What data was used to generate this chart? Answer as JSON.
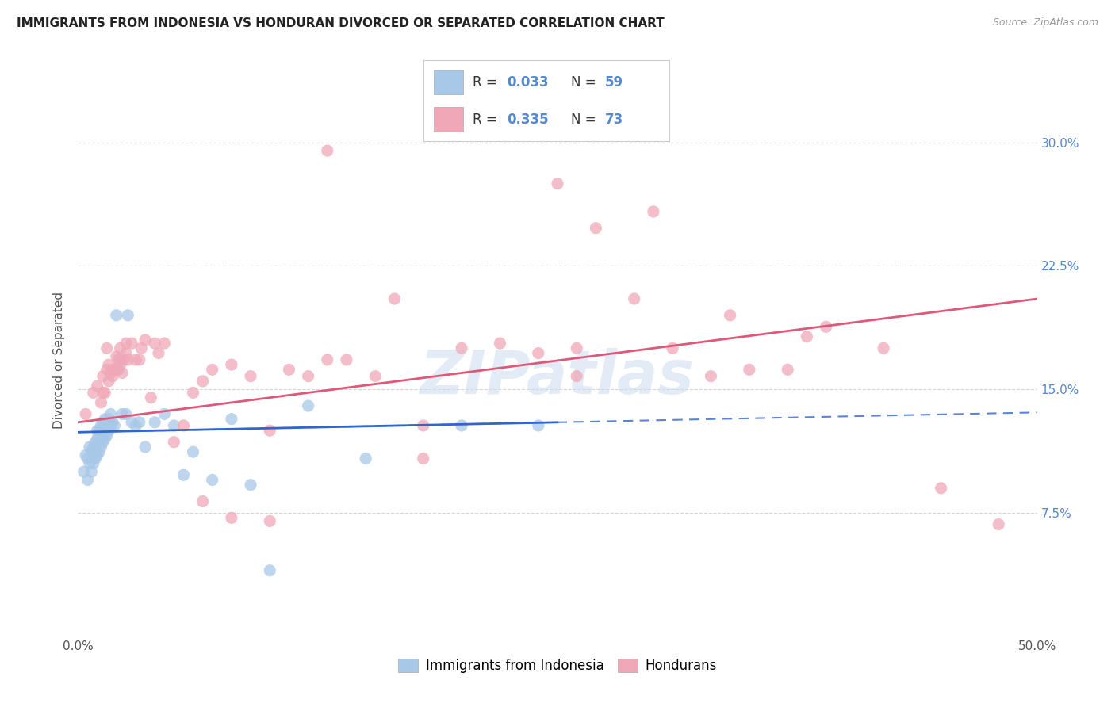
{
  "title": "IMMIGRANTS FROM INDONESIA VS HONDURAN DIVORCED OR SEPARATED CORRELATION CHART",
  "source": "Source: ZipAtlas.com",
  "ylabel": "Divorced or Separated",
  "xlim": [
    0.0,
    0.5
  ],
  "ylim": [
    0.0,
    0.335
  ],
  "xticks": [
    0.0,
    0.1,
    0.2,
    0.3,
    0.4,
    0.5
  ],
  "xticklabels": [
    "0.0%",
    "",
    "",
    "",
    "",
    "50.0%"
  ],
  "yticks": [
    0.075,
    0.15,
    0.225,
    0.3
  ],
  "yticklabels": [
    "7.5%",
    "15.0%",
    "22.5%",
    "30.0%"
  ],
  "watermark": "ZIPatlas",
  "legend_r1": "R = 0.033",
  "legend_n1": "N = 59",
  "legend_r2": "R = 0.335",
  "legend_n2": "N = 73",
  "indonesia_color": "#a8c8e8",
  "honduran_color": "#f0a8b8",
  "indonesia_line_color": "#3366cc",
  "honduran_line_color": "#e05878",
  "background_color": "#ffffff",
  "grid_color": "#cccccc",
  "tick_color": "#5588cc",
  "indonesia_points_x": [
    0.003,
    0.004,
    0.005,
    0.005,
    0.006,
    0.006,
    0.007,
    0.007,
    0.008,
    0.008,
    0.009,
    0.009,
    0.009,
    0.01,
    0.01,
    0.01,
    0.011,
    0.011,
    0.011,
    0.012,
    0.012,
    0.012,
    0.013,
    0.013,
    0.013,
    0.014,
    0.014,
    0.014,
    0.015,
    0.015,
    0.016,
    0.016,
    0.017,
    0.017,
    0.018,
    0.019,
    0.02,
    0.021,
    0.022,
    0.023,
    0.025,
    0.026,
    0.028,
    0.03,
    0.032,
    0.035,
    0.04,
    0.045,
    0.05,
    0.055,
    0.06,
    0.07,
    0.08,
    0.09,
    0.1,
    0.12,
    0.15,
    0.2,
    0.24
  ],
  "indonesia_points_y": [
    0.1,
    0.11,
    0.095,
    0.108,
    0.105,
    0.115,
    0.1,
    0.112,
    0.105,
    0.115,
    0.108,
    0.112,
    0.118,
    0.11,
    0.12,
    0.125,
    0.112,
    0.118,
    0.125,
    0.115,
    0.12,
    0.128,
    0.118,
    0.122,
    0.13,
    0.12,
    0.125,
    0.132,
    0.122,
    0.128,
    0.125,
    0.132,
    0.128,
    0.135,
    0.13,
    0.128,
    0.195,
    0.162,
    0.168,
    0.135,
    0.135,
    0.195,
    0.13,
    0.128,
    0.13,
    0.115,
    0.13,
    0.135,
    0.128,
    0.098,
    0.112,
    0.095,
    0.132,
    0.092,
    0.04,
    0.14,
    0.108,
    0.128,
    0.128
  ],
  "honduran_points_x": [
    0.004,
    0.008,
    0.01,
    0.012,
    0.013,
    0.013,
    0.014,
    0.015,
    0.015,
    0.016,
    0.016,
    0.017,
    0.018,
    0.018,
    0.019,
    0.02,
    0.02,
    0.021,
    0.022,
    0.022,
    0.023,
    0.024,
    0.025,
    0.025,
    0.026,
    0.028,
    0.03,
    0.032,
    0.033,
    0.035,
    0.038,
    0.04,
    0.042,
    0.045,
    0.05,
    0.055,
    0.06,
    0.065,
    0.07,
    0.08,
    0.09,
    0.1,
    0.11,
    0.12,
    0.13,
    0.14,
    0.155,
    0.165,
    0.18,
    0.2,
    0.22,
    0.24,
    0.26,
    0.29,
    0.31,
    0.33,
    0.35,
    0.37,
    0.39,
    0.42,
    0.45,
    0.48,
    0.25,
    0.27,
    0.3,
    0.34,
    0.38,
    0.18,
    0.13,
    0.1,
    0.08,
    0.065,
    0.26
  ],
  "honduran_points_y": [
    0.135,
    0.148,
    0.152,
    0.142,
    0.148,
    0.158,
    0.148,
    0.162,
    0.175,
    0.165,
    0.155,
    0.16,
    0.162,
    0.158,
    0.162,
    0.17,
    0.162,
    0.168,
    0.165,
    0.175,
    0.16,
    0.168,
    0.172,
    0.178,
    0.168,
    0.178,
    0.168,
    0.168,
    0.175,
    0.18,
    0.145,
    0.178,
    0.172,
    0.178,
    0.118,
    0.128,
    0.148,
    0.155,
    0.162,
    0.165,
    0.158,
    0.125,
    0.162,
    0.158,
    0.168,
    0.168,
    0.158,
    0.205,
    0.128,
    0.175,
    0.178,
    0.172,
    0.175,
    0.205,
    0.175,
    0.158,
    0.162,
    0.162,
    0.188,
    0.175,
    0.09,
    0.068,
    0.275,
    0.248,
    0.258,
    0.195,
    0.182,
    0.108,
    0.295,
    0.07,
    0.072,
    0.082,
    0.158
  ],
  "indonesia_solid_line": {
    "x0": 0.0,
    "x1": 0.25,
    "y0": 0.124,
    "y1": 0.13
  },
  "indonesia_dashed_line": {
    "x0": 0.0,
    "x1": 0.5,
    "y0": 0.124,
    "y1": 0.136
  },
  "honduran_solid_line": {
    "x0": 0.0,
    "x1": 0.5,
    "y0": 0.13,
    "y1": 0.205
  }
}
